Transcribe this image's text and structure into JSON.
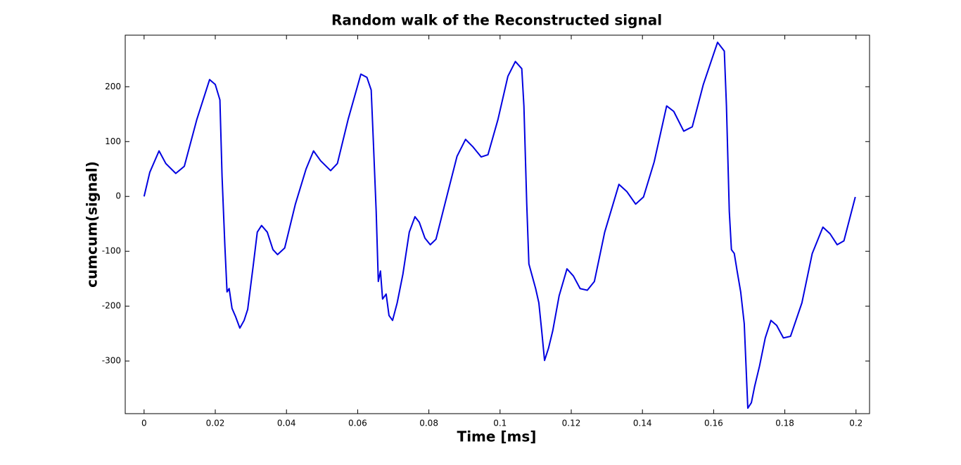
{
  "chart_data": {
    "type": "line",
    "title": "Random walk of the Reconstructed signal",
    "x_label": "Time [ms]",
    "y_label": "cumcum(signal)",
    "xlim": [
      -0.0053,
      0.2038
    ],
    "ylim": [
      -396,
      294
    ],
    "xticks": [
      0,
      0.02,
      0.04,
      0.06,
      0.08,
      0.1,
      0.12,
      0.14,
      0.16,
      0.18,
      0.2
    ],
    "yticks": [
      -300,
      -200,
      -100,
      0,
      100,
      200
    ],
    "series": [
      {
        "name": "cumcum(signal)",
        "color": "#0000e0",
        "x": [
          0,
          0.0016,
          0.0042,
          0.0061,
          0.0089,
          0.0113,
          0.0148,
          0.0184,
          0.02,
          0.0213,
          0.0219,
          0.0227,
          0.0233,
          0.0239,
          0.0247,
          0.0257,
          0.0269,
          0.0281,
          0.0291,
          0.0306,
          0.0318,
          0.033,
          0.0346,
          0.0362,
          0.0375,
          0.0395,
          0.0425,
          0.0455,
          0.0476,
          0.0496,
          0.0524,
          0.0543,
          0.0573,
          0.0609,
          0.0626,
          0.0638,
          0.0644,
          0.0652,
          0.0658,
          0.0664,
          0.067,
          0.068,
          0.0688,
          0.0698,
          0.0711,
          0.0727,
          0.0745,
          0.0761,
          0.0773,
          0.0789,
          0.0804,
          0.082,
          0.085,
          0.0879,
          0.0903,
          0.0923,
          0.0947,
          0.0966,
          0.0994,
          0.1022,
          0.1043,
          0.1061,
          0.1067,
          0.1075,
          0.1081,
          0.1089,
          0.11,
          0.1109,
          0.1117,
          0.1125,
          0.1136,
          0.1148,
          0.1166,
          0.1188,
          0.1206,
          0.1225,
          0.1245,
          0.1265,
          0.1294,
          0.1334,
          0.1356,
          0.1381,
          0.1403,
          0.1433,
          0.1468,
          0.1488,
          0.1516,
          0.154,
          0.1571,
          0.1611,
          0.163,
          0.1636,
          0.1644,
          0.165,
          0.1658,
          0.1666,
          0.1676,
          0.1686,
          0.1696,
          0.1706,
          0.1715,
          0.1729,
          0.1745,
          0.1761,
          0.1777,
          0.1796,
          0.1816,
          0.1848,
          0.1877,
          0.1907,
          0.1927,
          0.1947,
          0.1966,
          0.1998
        ],
        "values": [
          0,
          44,
          83,
          60,
          42,
          55,
          140,
          213,
          204,
          176,
          37,
          -91,
          -174,
          -168,
          -204,
          -219,
          -240,
          -226,
          -206,
          -129,
          -65,
          -53,
          -65,
          -97,
          -106,
          -94,
          -14,
          50,
          83,
          65,
          47,
          60,
          140,
          223,
          217,
          194,
          101,
          -27,
          -155,
          -136,
          -187,
          -178,
          -217,
          -226,
          -194,
          -142,
          -65,
          -37,
          -47,
          -76,
          -88,
          -78,
          -1,
          73,
          104,
          91,
          72,
          76,
          140,
          219,
          246,
          233,
          165,
          -14,
          -123,
          -142,
          -168,
          -194,
          -245,
          -299,
          -277,
          -245,
          -181,
          -132,
          -145,
          -168,
          -171,
          -155,
          -65,
          22,
          9,
          -14,
          -1,
          63,
          165,
          155,
          119,
          127,
          204,
          281,
          265,
          165,
          -27,
          -97,
          -104,
          -136,
          -174,
          -232,
          -386,
          -376,
          -347,
          -309,
          -258,
          -226,
          -235,
          -258,
          -255,
          -194,
          -104,
          -56,
          -68,
          -88,
          -81,
          -1
        ]
      }
    ]
  }
}
